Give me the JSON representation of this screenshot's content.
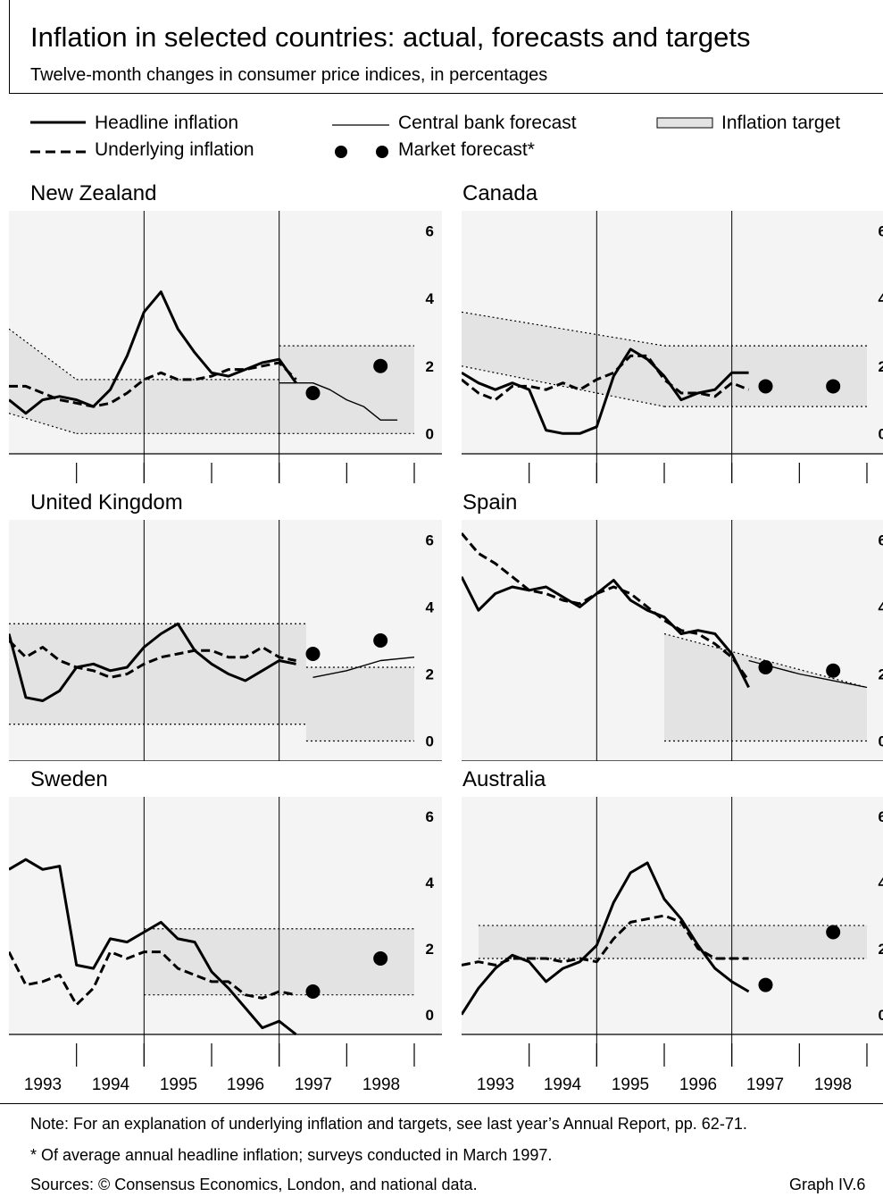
{
  "title": "Inflation in selected countries: actual, forecasts and targets",
  "subtitle": "Twelve-month changes in consumer price indices, in percentages",
  "legend": {
    "headline": "Headline inflation",
    "underlying": "Underlying inflation",
    "cb_forecast": "Central bank forecast",
    "market_forecast": "Market forecast*",
    "target": "Inflation target"
  },
  "x_axis_labels": [
    "1993",
    "1994",
    "1995",
    "1996",
    "1997",
    "1998"
  ],
  "notes": {
    "note1": "Note: For an explanation of underlying inflation and targets, see last year’s Annual Report, pp. 62-71.",
    "note2": "* Of average annual headline inflation; surveys conducted in March 1997.",
    "sources": "Sources: © Consensus Economics, London, and national data.",
    "graph_id": "Graph IV.6"
  },
  "colors": {
    "target_band": "#e3e3e3",
    "panel_background": "#f4f4f4",
    "lines": "#000000"
  },
  "chart_data": [
    {
      "type": "line",
      "title": "New Zealand",
      "xlim": [
        1993,
        1999
      ],
      "ylim": [
        -0.6,
        6.6
      ],
      "yticks": [
        0,
        2,
        4,
        6
      ],
      "series": [
        {
          "name": "Headline inflation",
          "x": [
            1993,
            1993.25,
            1993.5,
            1993.75,
            1994,
            1994.25,
            1994.5,
            1994.75,
            1995,
            1995.25,
            1995.5,
            1995.75,
            1996,
            1996.25,
            1996.5,
            1996.75,
            1997,
            1997.25
          ],
          "y": [
            1,
            0.6,
            1,
            1.1,
            1,
            0.8,
            1.3,
            2.3,
            3.6,
            4.2,
            3.1,
            2.4,
            1.8,
            1.7,
            1.9,
            2.1,
            2.2,
            1.5
          ]
        },
        {
          "name": "Underlying inflation",
          "x": [
            1993,
            1993.25,
            1993.5,
            1993.75,
            1994,
            1994.25,
            1994.5,
            1994.75,
            1995,
            1995.25,
            1995.5,
            1995.75,
            1996,
            1996.25,
            1996.5,
            1996.75,
            1997,
            1997.25
          ],
          "y": [
            1.4,
            1.4,
            1.2,
            1.0,
            0.9,
            0.8,
            0.9,
            1.2,
            1.6,
            1.8,
            1.6,
            1.6,
            1.7,
            1.9,
            1.9,
            2.0,
            2.1,
            1.6
          ]
        },
        {
          "name": "Central bank forecast",
          "x": [
            1997,
            1997.25,
            1997.5,
            1997.75,
            1998,
            1998.25,
            1998.5,
            1998.75
          ],
          "y": [
            1.5,
            1.5,
            1.5,
            1.3,
            1.0,
            0.8,
            0.4,
            0.4
          ]
        }
      ],
      "market_forecast": [
        {
          "x": 1997.5,
          "y": 1.2
        },
        {
          "x": 1998.5,
          "y": 2.0
        }
      ],
      "target_band": [
        {
          "x": [
            1993,
            1994
          ],
          "low": [
            0.6,
            0
          ],
          "high": [
            3.1,
            1.6
          ]
        },
        {
          "x": [
            1994,
            1997
          ],
          "low": [
            0,
            0
          ],
          "high": [
            1.6,
            1.6
          ]
        },
        {
          "x": [
            1997,
            1999
          ],
          "low": [
            0,
            0
          ],
          "high": [
            2.6,
            2.6
          ]
        }
      ]
    },
    {
      "type": "line",
      "title": "Canada",
      "xlim": [
        1993,
        1999
      ],
      "ylim": [
        -0.6,
        6.6
      ],
      "yticks": [
        0,
        2,
        4,
        6
      ],
      "series": [
        {
          "name": "Headline inflation",
          "x": [
            1993,
            1993.25,
            1993.5,
            1993.75,
            1994,
            1994.25,
            1994.5,
            1994.75,
            1995,
            1995.25,
            1995.5,
            1995.75,
            1996,
            1996.25,
            1996.5,
            1996.75,
            1997,
            1997.25
          ],
          "y": [
            1.8,
            1.5,
            1.3,
            1.5,
            1.3,
            0.1,
            0,
            0,
            0.2,
            1.7,
            2.5,
            2.2,
            1.7,
            1.0,
            1.2,
            1.3,
            1.8,
            1.8
          ]
        },
        {
          "name": "Underlying inflation",
          "x": [
            1993,
            1993.25,
            1993.5,
            1993.75,
            1994,
            1994.25,
            1994.5,
            1994.75,
            1995,
            1995.25,
            1995.5,
            1995.75,
            1996,
            1996.25,
            1996.5,
            1996.75,
            1997,
            1997.25
          ],
          "y": [
            1.6,
            1.2,
            1.0,
            1.4,
            1.4,
            1.3,
            1.5,
            1.3,
            1.6,
            1.8,
            2.3,
            2.3,
            1.6,
            1.2,
            1.2,
            1.1,
            1.5,
            1.3
          ]
        }
      ],
      "market_forecast": [
        {
          "x": 1997.5,
          "y": 1.4
        },
        {
          "x": 1998.5,
          "y": 1.4
        }
      ],
      "target_band": [
        {
          "x": [
            1993,
            1996
          ],
          "low": [
            2.0,
            0.8
          ],
          "high": [
            3.6,
            2.6
          ]
        },
        {
          "x": [
            1996,
            1999
          ],
          "low": [
            0.8,
            0.8
          ],
          "high": [
            2.6,
            2.6
          ]
        }
      ]
    },
    {
      "type": "line",
      "title": "United Kingdom",
      "xlim": [
        1993,
        1999
      ],
      "ylim": [
        -0.6,
        6.6
      ],
      "yticks": [
        0,
        2,
        4,
        6
      ],
      "series": [
        {
          "name": "Headline inflation",
          "x": [
            1993,
            1993.25,
            1993.5,
            1993.75,
            1994,
            1994.25,
            1994.5,
            1994.75,
            1995,
            1995.25,
            1995.5,
            1995.75,
            1996,
            1996.25,
            1996.5,
            1996.75,
            1997,
            1997.25
          ],
          "y": [
            3.2,
            1.3,
            1.2,
            1.5,
            2.2,
            2.3,
            2.1,
            2.2,
            2.8,
            3.2,
            3.5,
            2.7,
            2.3,
            2.0,
            1.8,
            2.1,
            2.4,
            2.3
          ]
        },
        {
          "name": "Underlying inflation",
          "x": [
            1993,
            1993.25,
            1993.5,
            1993.75,
            1994,
            1994.25,
            1994.5,
            1994.75,
            1995,
            1995.25,
            1995.5,
            1995.75,
            1996,
            1996.25,
            1996.5,
            1996.75,
            1997,
            1997.25
          ],
          "y": [
            3.0,
            2.5,
            2.8,
            2.4,
            2.2,
            2.1,
            1.9,
            2.0,
            2.3,
            2.5,
            2.6,
            2.7,
            2.7,
            2.5,
            2.5,
            2.8,
            2.5,
            2.4
          ]
        },
        {
          "name": "Central bank forecast",
          "x": [
            1997.5,
            1998,
            1998.5,
            1999
          ],
          "y": [
            1.9,
            2.1,
            2.4,
            2.5
          ]
        }
      ],
      "market_forecast": [
        {
          "x": 1997.5,
          "y": 2.6
        },
        {
          "x": 1998.5,
          "y": 3.0
        }
      ],
      "target_band": [
        {
          "x": [
            1993,
            1997.4
          ],
          "low": [
            0.5,
            0.5
          ],
          "high": [
            3.5,
            3.5
          ]
        },
        {
          "x": [
            1997.4,
            1999
          ],
          "low": [
            0,
            0
          ],
          "high": [
            2.2,
            2.2
          ]
        }
      ]
    },
    {
      "type": "line",
      "title": "Spain",
      "xlim": [
        1993,
        1999
      ],
      "ylim": [
        -0.6,
        6.6
      ],
      "yticks": [
        0,
        2,
        4,
        6
      ],
      "series": [
        {
          "name": "Headline inflation",
          "x": [
            1993,
            1993.25,
            1993.5,
            1993.75,
            1994,
            1994.25,
            1994.5,
            1994.75,
            1995,
            1995.25,
            1995.5,
            1995.75,
            1996,
            1996.25,
            1996.5,
            1996.75,
            1997,
            1997.25
          ],
          "y": [
            4.9,
            3.9,
            4.4,
            4.6,
            4.5,
            4.6,
            4.3,
            4.0,
            4.4,
            4.8,
            4.2,
            3.9,
            3.7,
            3.2,
            3.3,
            3.2,
            2.6,
            1.6
          ]
        },
        {
          "name": "Underlying inflation",
          "x": [
            1993,
            1993.25,
            1993.5,
            1993.75,
            1994,
            1994.25,
            1994.5,
            1994.75,
            1995,
            1995.25,
            1995.5,
            1995.75,
            1996,
            1996.25,
            1996.5,
            1996.75,
            1997,
            1997.25
          ],
          "y": [
            6.2,
            5.6,
            5.3,
            4.9,
            4.5,
            4.4,
            4.2,
            4.1,
            4.4,
            4.6,
            4.4,
            4.0,
            3.6,
            3.3,
            3.2,
            2.9,
            2.5,
            1.8
          ]
        },
        {
          "name": "Central bank forecast",
          "x": [
            1997.25,
            1998,
            1999
          ],
          "y": [
            2.4,
            2.0,
            1.6
          ]
        }
      ],
      "market_forecast": [
        {
          "x": 1997.5,
          "y": 2.2
        },
        {
          "x": 1998.5,
          "y": 2.1
        }
      ],
      "target_band": [
        {
          "x": [
            1996,
            1999
          ],
          "low": [
            0,
            0
          ],
          "high": [
            3.2,
            1.6
          ]
        }
      ]
    },
    {
      "type": "line",
      "title": "Sweden",
      "xlim": [
        1993,
        1999
      ],
      "ylim": [
        -0.6,
        6.6
      ],
      "yticks": [
        0,
        2,
        4,
        6
      ],
      "series": [
        {
          "name": "Headline inflation",
          "x": [
            1993,
            1993.25,
            1993.5,
            1993.75,
            1994,
            1994.25,
            1994.5,
            1994.75,
            1995,
            1995.25,
            1995.5,
            1995.75,
            1996,
            1996.25,
            1996.5,
            1996.75,
            1997,
            1997.25
          ],
          "y": [
            4.4,
            4.7,
            4.4,
            4.5,
            1.5,
            1.4,
            2.3,
            2.2,
            2.5,
            2.8,
            2.3,
            2.2,
            1.3,
            0.8,
            0.2,
            -0.4,
            -0.2,
            -0.6
          ]
        },
        {
          "name": "Underlying inflation",
          "x": [
            1993,
            1993.25,
            1993.5,
            1993.75,
            1994,
            1994.25,
            1994.5,
            1994.75,
            1995,
            1995.25,
            1995.5,
            1995.75,
            1996,
            1996.25,
            1996.5,
            1996.75,
            1997,
            1997.25
          ],
          "y": [
            1.9,
            0.9,
            1.0,
            1.2,
            0.3,
            0.8,
            1.9,
            1.7,
            1.9,
            1.9,
            1.4,
            1.2,
            1.0,
            1.0,
            0.6,
            0.5,
            0.7,
            0.6
          ]
        },
        {
          "name": "Central bank forecast",
          "x": [],
          "y": []
        }
      ],
      "market_forecast": [
        {
          "x": 1997.5,
          "y": 0.7
        },
        {
          "x": 1998.5,
          "y": 1.7
        }
      ],
      "target_band": [
        {
          "x": [
            1995,
            1999
          ],
          "low": [
            0.6,
            0.6
          ],
          "high": [
            2.6,
            2.6
          ]
        }
      ]
    },
    {
      "type": "line",
      "title": "Australia",
      "xlim": [
        1993,
        1999
      ],
      "ylim": [
        -0.6,
        6.6
      ],
      "yticks": [
        0,
        2,
        4,
        6
      ],
      "series": [
        {
          "name": "Headline inflation",
          "x": [
            1993,
            1993.25,
            1993.5,
            1993.75,
            1994,
            1994.25,
            1994.5,
            1994.75,
            1995,
            1995.25,
            1995.5,
            1995.75,
            1996,
            1996.25,
            1996.5,
            1996.75,
            1997,
            1997.25
          ],
          "y": [
            0,
            0.8,
            1.4,
            1.8,
            1.6,
            1.0,
            1.4,
            1.6,
            2.1,
            3.4,
            4.3,
            4.6,
            3.5,
            2.9,
            2.1,
            1.4,
            1.0,
            0.7
          ]
        },
        {
          "name": "Underlying inflation",
          "x": [
            1993,
            1993.25,
            1993.5,
            1993.75,
            1994,
            1994.25,
            1994.5,
            1994.75,
            1995,
            1995.25,
            1995.5,
            1995.75,
            1996,
            1996.25,
            1996.5,
            1996.75,
            1997,
            1997.25
          ],
          "y": [
            1.5,
            1.6,
            1.5,
            1.7,
            1.7,
            1.7,
            1.6,
            1.7,
            1.6,
            2.3,
            2.8,
            2.9,
            3.0,
            2.8,
            2.0,
            1.7,
            1.7,
            1.7
          ]
        },
        {
          "name": "Central bank forecast",
          "x": [],
          "y": []
        }
      ],
      "market_forecast": [
        {
          "x": 1997.5,
          "y": 0.9
        },
        {
          "x": 1998.5,
          "y": 2.5
        }
      ],
      "target_band": [
        {
          "x": [
            1993.25,
            1999
          ],
          "low": [
            1.7,
            1.7
          ],
          "high": [
            2.7,
            2.7
          ]
        }
      ]
    }
  ]
}
